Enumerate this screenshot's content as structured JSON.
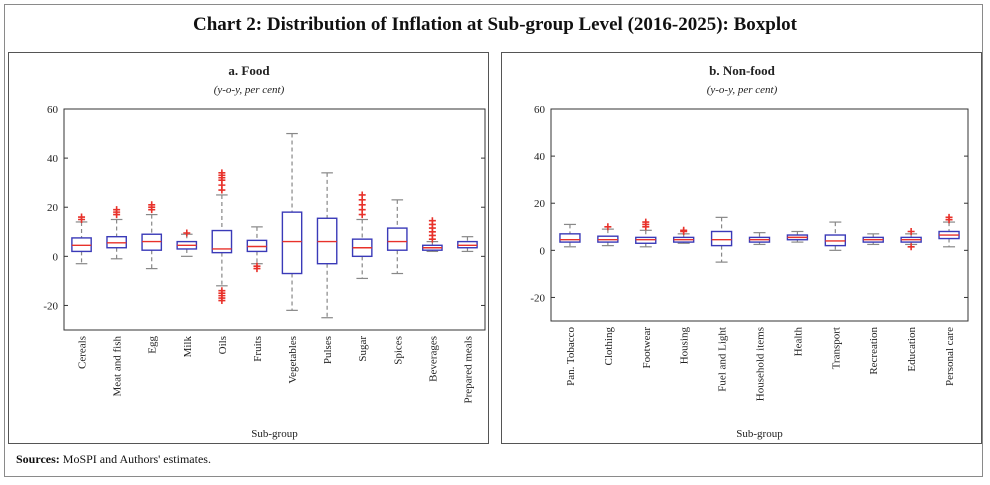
{
  "title": "Chart 2: Distribution of Inflation at Sub-group Level (2016-2025): Boxplot",
  "sources_label": "Sources:",
  "sources_text": "MoSPI and Authors' estimates.",
  "colors": {
    "box": "#3a3ab8",
    "median": "#e8312a",
    "whisker": "#888888",
    "outlier": "#e8312a"
  },
  "chart_data": [
    {
      "type": "boxplot",
      "title": "a. Food",
      "subtitle": "(y-o-y, per cent)",
      "xlabel": "Sub-group",
      "ylabel": "",
      "ylim": [
        -30,
        60
      ],
      "yticks": [
        -20,
        0,
        20,
        40,
        60
      ],
      "categories": [
        "Cereals",
        "Meat and fish",
        "Egg",
        "Milk",
        "Oils",
        "Fruits",
        "Vegetables",
        "Pulses",
        "Sugar",
        "Spices",
        "Beverages",
        "Prepared meals"
      ],
      "series": [
        {
          "name": "Cereals",
          "min": -3,
          "q1": 2,
          "median": 4.5,
          "q3": 7.5,
          "max": 14,
          "outliers": [
            15,
            16
          ]
        },
        {
          "name": "Meat and fish",
          "min": -1,
          "q1": 3.5,
          "median": 5.5,
          "q3": 8,
          "max": 15,
          "outliers": [
            17,
            18,
            19
          ]
        },
        {
          "name": "Egg",
          "min": -5,
          "q1": 2.5,
          "median": 6,
          "q3": 9,
          "max": 17,
          "outliers": [
            19,
            20,
            21
          ]
        },
        {
          "name": "Milk",
          "min": 0,
          "q1": 3,
          "median": 4.5,
          "q3": 6,
          "max": 9,
          "outliers": [
            9.5
          ]
        },
        {
          "name": "Oils",
          "min": -12,
          "q1": 1.5,
          "median": 3,
          "q3": 10.5,
          "max": 25,
          "outliers": [
            27,
            29,
            31,
            32,
            33,
            34,
            -14,
            -15,
            -16,
            -17,
            -18
          ]
        },
        {
          "name": "Fruits",
          "min": -3,
          "q1": 2,
          "median": 4,
          "q3": 6.5,
          "max": 12,
          "outliers": [
            -4,
            -5
          ]
        },
        {
          "name": "Vegetables",
          "min": -22,
          "q1": -7,
          "median": 6,
          "q3": 18,
          "max": 50,
          "outliers": []
        },
        {
          "name": "Pulses",
          "min": -25,
          "q1": -3,
          "median": 6,
          "q3": 15.5,
          "max": 34,
          "outliers": []
        },
        {
          "name": "Sugar",
          "min": -9,
          "q1": 0,
          "median": 3.5,
          "q3": 7,
          "max": 15,
          "outliers": [
            17,
            19,
            21,
            23,
            25
          ]
        },
        {
          "name": "Spices",
          "min": -7,
          "q1": 2.5,
          "median": 6,
          "q3": 11.5,
          "max": 23,
          "outliers": []
        },
        {
          "name": "Beverages",
          "min": 2,
          "q1": 2.5,
          "median": 3.5,
          "q3": 4.5,
          "max": 6,
          "outliers": [
            7,
            8.5,
            10,
            11.5,
            13,
            14.5
          ]
        },
        {
          "name": "Prepared meals",
          "min": 2,
          "q1": 3.5,
          "median": 4.5,
          "q3": 6,
          "max": 8,
          "outliers": []
        }
      ]
    },
    {
      "type": "boxplot",
      "title": "b. Non-food",
      "subtitle": "(y-o-y, per cent)",
      "xlabel": "Sub-group",
      "ylabel": "",
      "ylim": [
        -30,
        60
      ],
      "yticks": [
        -20,
        0,
        20,
        40,
        60
      ],
      "categories": [
        "Pan. Tobacco",
        "Clothing",
        "Footwear",
        "Housing",
        "Fuel and Light",
        "Household items",
        "Health",
        "Transport",
        "Recreation",
        "Education",
        "Personal care"
      ],
      "series": [
        {
          "name": "Pan. Tobacco",
          "min": 1.5,
          "q1": 3.5,
          "median": 4.5,
          "q3": 7,
          "max": 11,
          "outliers": []
        },
        {
          "name": "Clothing",
          "min": 2,
          "q1": 3.5,
          "median": 4.5,
          "q3": 6,
          "max": 9,
          "outliers": [
            10
          ]
        },
        {
          "name": "Footwear",
          "min": 1.5,
          "q1": 3,
          "median": 4.5,
          "q3": 5.5,
          "max": 8.5,
          "outliers": [
            10,
            11,
            12
          ]
        },
        {
          "name": "Housing",
          "min": 3,
          "q1": 3.5,
          "median": 4.5,
          "q3": 5.5,
          "max": 7,
          "outliers": [
            8,
            8.5
          ]
        },
        {
          "name": "Fuel and Light",
          "min": -5,
          "q1": 2,
          "median": 4.5,
          "q3": 8,
          "max": 14,
          "outliers": []
        },
        {
          "name": "Household items",
          "min": 2.5,
          "q1": 3.5,
          "median": 4.5,
          "q3": 5.5,
          "max": 7.5,
          "outliers": []
        },
        {
          "name": "Health",
          "min": 3.5,
          "q1": 4.5,
          "median": 5.5,
          "q3": 6.5,
          "max": 8,
          "outliers": []
        },
        {
          "name": "Transport",
          "min": 0,
          "q1": 2,
          "median": 4,
          "q3": 6.5,
          "max": 12,
          "outliers": []
        },
        {
          "name": "Recreation",
          "min": 2.5,
          "q1": 3.5,
          "median": 4.5,
          "q3": 5.5,
          "max": 7,
          "outliers": []
        },
        {
          "name": "Education",
          "min": 2.5,
          "q1": 3.5,
          "median": 4.5,
          "q3": 5.5,
          "max": 7,
          "outliers": [
            8,
            1.5
          ]
        },
        {
          "name": "Personal care",
          "min": 1.5,
          "q1": 5,
          "median": 6.5,
          "q3": 8,
          "max": 12,
          "outliers": [
            13,
            14
          ]
        }
      ]
    }
  ]
}
